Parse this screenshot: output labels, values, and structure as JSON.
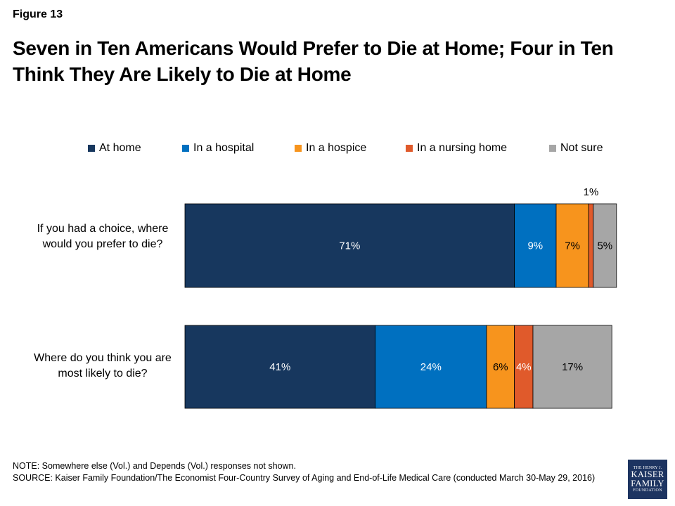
{
  "figure_label": "Figure 13",
  "title": "Seven in Ten Americans Would Prefer to Die at Home; Four in Ten Think They Are Likely to Die at Home",
  "note": "NOTE: Somewhere else (Vol.) and Depends (Vol.) responses not shown.",
  "source": "SOURCE: Kaiser Family Foundation/The Economist Four-Country Survey of Aging and End-of-Life Medical Care (conducted March 30-May 29, 2016)",
  "logo": {
    "line1": "THE HENRY J.",
    "line2": "KAISER",
    "line3": "FAMILY",
    "line4": "FOUNDATION"
  },
  "chart_data": {
    "type": "bar",
    "orientation": "horizontal",
    "stacked": true,
    "legend_position": "top",
    "categories": [
      "If you had a choice, where would you prefer to die?",
      "Where do you think you are most likely to die?"
    ],
    "series": [
      {
        "name": "At home",
        "color": "#17375e",
        "label_color": "#ffffff",
        "values": [
          71,
          41
        ]
      },
      {
        "name": "In a hospital",
        "color": "#0070c0",
        "label_color": "#ffffff",
        "values": [
          9,
          24
        ]
      },
      {
        "name": "In a hospice",
        "color": "#f7941d",
        "label_color": "#000000",
        "values": [
          7,
          6
        ]
      },
      {
        "name": "In a nursing home",
        "color": "#e05a2b",
        "label_color": "#ffffff",
        "values": [
          1,
          4
        ]
      },
      {
        "name": "Not sure",
        "color": "#a6a6a6",
        "label_color": "#000000",
        "values": [
          5,
          17
        ]
      }
    ],
    "data_labels": [
      [
        "71%",
        "9%",
        "7%",
        "1%",
        "5%"
      ],
      [
        "41%",
        "24%",
        "6%",
        "4%",
        "17%"
      ]
    ],
    "xlim": [
      0,
      100
    ]
  }
}
